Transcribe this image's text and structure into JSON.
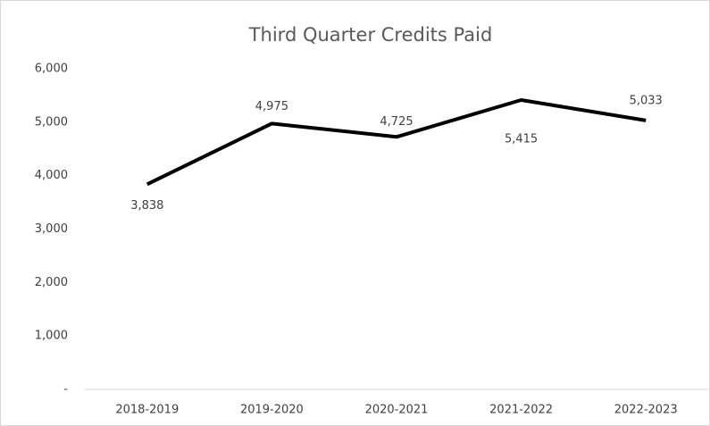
{
  "chart_data": {
    "type": "line",
    "title": "Third Quarter Credits Paid",
    "categories": [
      "2018-2019",
      "2019-2020",
      "2020-2021",
      "2021-2022",
      "2022-2023"
    ],
    "series": [
      {
        "name": "Credits Paid",
        "color": "#000000",
        "values": [
          3838,
          4975,
          4725,
          5415,
          5033
        ],
        "value_labels": [
          "3,838",
          "4,975",
          "4,725",
          "5,415",
          "5,033"
        ]
      }
    ],
    "ylim": [
      0,
      6000
    ],
    "yticks": [
      {
        "value": 0,
        "label": "-"
      },
      {
        "value": 1000,
        "label": "1,000"
      },
      {
        "value": 2000,
        "label": "2,000"
      },
      {
        "value": 3000,
        "label": "3,000"
      },
      {
        "value": 4000,
        "label": "4,000"
      },
      {
        "value": 5000,
        "label": "5,000"
      },
      {
        "value": 6000,
        "label": "6,000"
      }
    ],
    "grid": false
  }
}
